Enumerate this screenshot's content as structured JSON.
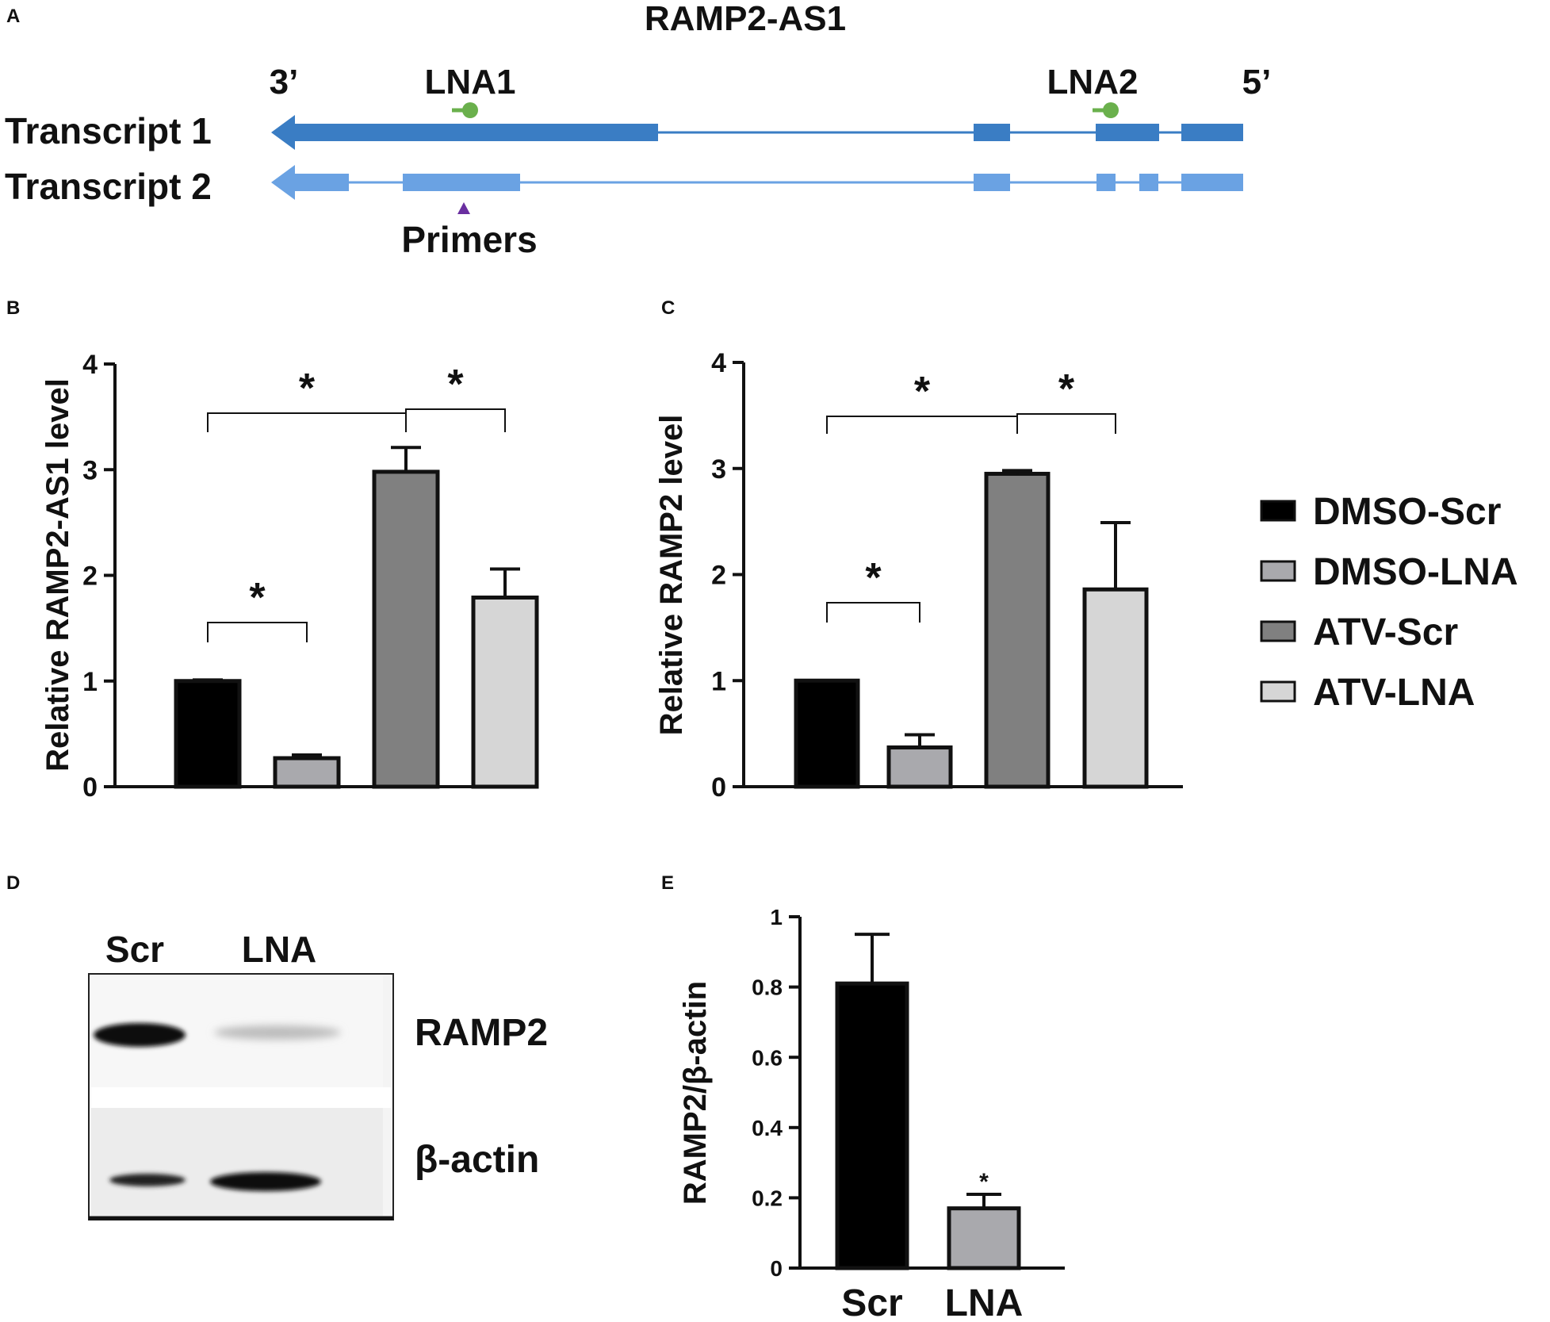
{
  "panels": {
    "a": "A",
    "b": "B",
    "c": "C",
    "d": "D",
    "e": "E"
  },
  "panel_a": {
    "gene": "RAMP2-AS1",
    "end_left": "3’",
    "end_right": "5’",
    "lna1": "LNA1",
    "lna2": "LNA2",
    "transcript1": "Transcript 1",
    "transcript2": "Transcript 2",
    "primers": "Primers",
    "colors": {
      "transcript1": "#3a7dc4",
      "transcript2": "#6aa2e3",
      "probe": "#6ab04c",
      "primer": "#6a2fa0"
    }
  },
  "legend": {
    "items": [
      {
        "label": "DMSO-Scr",
        "color": "#000000"
      },
      {
        "label": "DMSO-LNA",
        "color": "#a9a9ad"
      },
      {
        "label": "ATV-Scr",
        "color": "#808080"
      },
      {
        "label": "ATV-LNA",
        "color": "#d6d6d6"
      }
    ]
  },
  "panel_d": {
    "lanes": [
      "Scr",
      "LNA"
    ],
    "rows": [
      "RAMP2",
      "β-actin"
    ]
  },
  "chart_data": [
    {
      "id": "B",
      "type": "bar",
      "ylabel": "Relative RAMP2-AS1 level",
      "ylim": [
        0,
        4
      ],
      "yticks": [
        "0",
        "1",
        "2",
        "3",
        "4"
      ],
      "categories": [
        "DMSO-Scr",
        "DMSO-LNA",
        "ATV-Scr",
        "ATV-LNA"
      ],
      "values": [
        1.0,
        0.27,
        2.98,
        1.79
      ],
      "errors": [
        0.01,
        0.03,
        0.23,
        0.27
      ],
      "colors": [
        "#000000",
        "#a9a9ad",
        "#808080",
        "#d6d6d6"
      ],
      "significance": [
        {
          "from": 0,
          "to": 1,
          "label": "*"
        },
        {
          "from": 0,
          "to": 2,
          "label": "*"
        },
        {
          "from": 2,
          "to": 3,
          "label": "*"
        }
      ]
    },
    {
      "id": "C",
      "type": "bar",
      "ylabel": "Relative RAMP2 level",
      "ylim": [
        0,
        4
      ],
      "yticks": [
        "0",
        "1",
        "2",
        "3",
        "4"
      ],
      "categories": [
        "DMSO-Scr",
        "DMSO-LNA",
        "ATV-Scr",
        "ATV-LNA"
      ],
      "values": [
        1.0,
        0.37,
        2.95,
        1.86
      ],
      "errors": [
        0.0,
        0.12,
        0.03,
        0.63
      ],
      "colors": [
        "#000000",
        "#a9a9ad",
        "#808080",
        "#d6d6d6"
      ],
      "significance": [
        {
          "from": 0,
          "to": 1,
          "label": "*"
        },
        {
          "from": 0,
          "to": 2,
          "label": "*"
        },
        {
          "from": 2,
          "to": 3,
          "label": "*"
        }
      ]
    },
    {
      "id": "E",
      "type": "bar",
      "ylabel": "RAMP2/β-actin",
      "ylim": [
        0,
        1
      ],
      "yticks": [
        "0",
        "0.2",
        "0.4",
        "0.6",
        "0.8",
        "1"
      ],
      "categories": [
        "Scr",
        "LNA"
      ],
      "values": [
        0.81,
        0.17
      ],
      "errors": [
        0.14,
        0.04
      ],
      "colors": [
        "#000000",
        "#a9a9ad"
      ],
      "annotations": [
        {
          "bar": 1,
          "label": "*"
        }
      ]
    }
  ]
}
